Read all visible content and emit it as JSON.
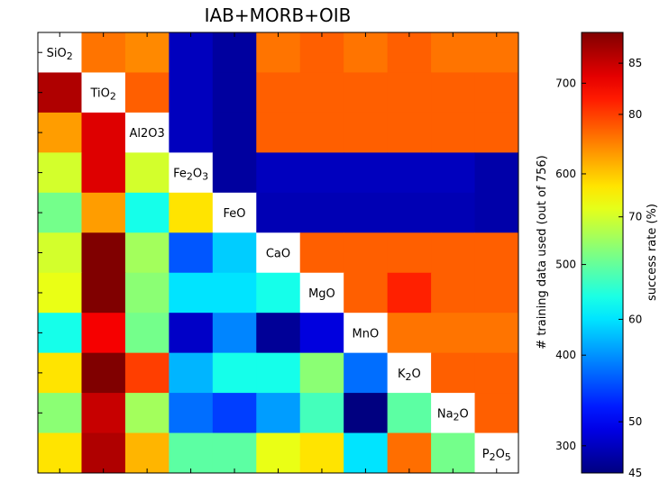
{
  "chart_data": {
    "type": "heatmap",
    "title": "IAB+MORB+OIB",
    "variables": [
      "SiO2",
      "TiO2",
      "Al2O3",
      "Fe2O3",
      "FeO",
      "CaO",
      "MgO",
      "MnO",
      "K2O",
      "Na2O",
      "P2O5"
    ],
    "diagonal_labels": [
      {
        "base": "SiO",
        "sub": "2"
      },
      {
        "base": "TiO",
        "sub": "2"
      },
      {
        "base": "Al2O3",
        "sub": ""
      },
      {
        "base": "Fe",
        "sub": "2",
        "mid": "O",
        "sub2": "3"
      },
      {
        "base": "FeO",
        "sub": ""
      },
      {
        "base": "CaO",
        "sub": ""
      },
      {
        "base": "MgO",
        "sub": ""
      },
      {
        "base": "MnO",
        "sub": ""
      },
      {
        "base": "K",
        "sub": "2",
        "mid": "O",
        "sub2": ""
      },
      {
        "base": "Na",
        "sub": "2",
        "mid": "O",
        "sub2": ""
      },
      {
        "base": "P",
        "sub": "2",
        "mid": "O",
        "sub2": "5"
      }
    ],
    "lower_triangle_metric": "success rate (%)",
    "upper_triangle_metric": "# training data used (out of 756)",
    "matrix": [
      [
        null,
        640,
        630,
        300,
        285,
        640,
        650,
        640,
        650,
        640,
        640
      ],
      [
        86,
        null,
        650,
        300,
        285,
        650,
        650,
        650,
        650,
        650,
        650
      ],
      [
        76,
        84,
        null,
        300,
        285,
        650,
        650,
        650,
        650,
        650,
        650
      ],
      [
        70,
        84,
        70,
        null,
        285,
        300,
        300,
        300,
        300,
        300,
        290
      ],
      [
        66,
        76,
        62,
        73,
        null,
        295,
        295,
        295,
        295,
        295,
        290
      ],
      [
        70,
        89,
        68,
        54,
        59,
        null,
        650,
        650,
        650,
        650,
        650
      ],
      [
        71,
        89,
        67,
        60,
        60,
        62,
        null,
        650,
        680,
        650,
        650
      ],
      [
        62,
        83,
        66,
        48,
        56,
        46,
        49,
        null,
        640,
        640,
        640
      ],
      [
        73,
        91,
        80,
        58,
        62,
        62,
        67,
        55,
        null,
        650,
        650
      ],
      [
        67,
        85,
        68,
        55,
        53,
        57,
        64,
        45,
        65,
        null,
        650
      ],
      [
        73,
        86,
        75,
        65,
        65,
        71,
        73,
        60,
        78,
        66,
        null
      ]
    ],
    "colorbar_left": {
      "label": "# training data used (out of 756)",
      "range": [
        270,
        756
      ],
      "ticks": [
        300,
        400,
        500,
        600,
        700
      ]
    },
    "colorbar_right": {
      "label": "success rate (%)",
      "range": [
        45,
        88
      ],
      "ticks": [
        45,
        50,
        60,
        70,
        80,
        85
      ]
    },
    "colormap": "jet"
  }
}
